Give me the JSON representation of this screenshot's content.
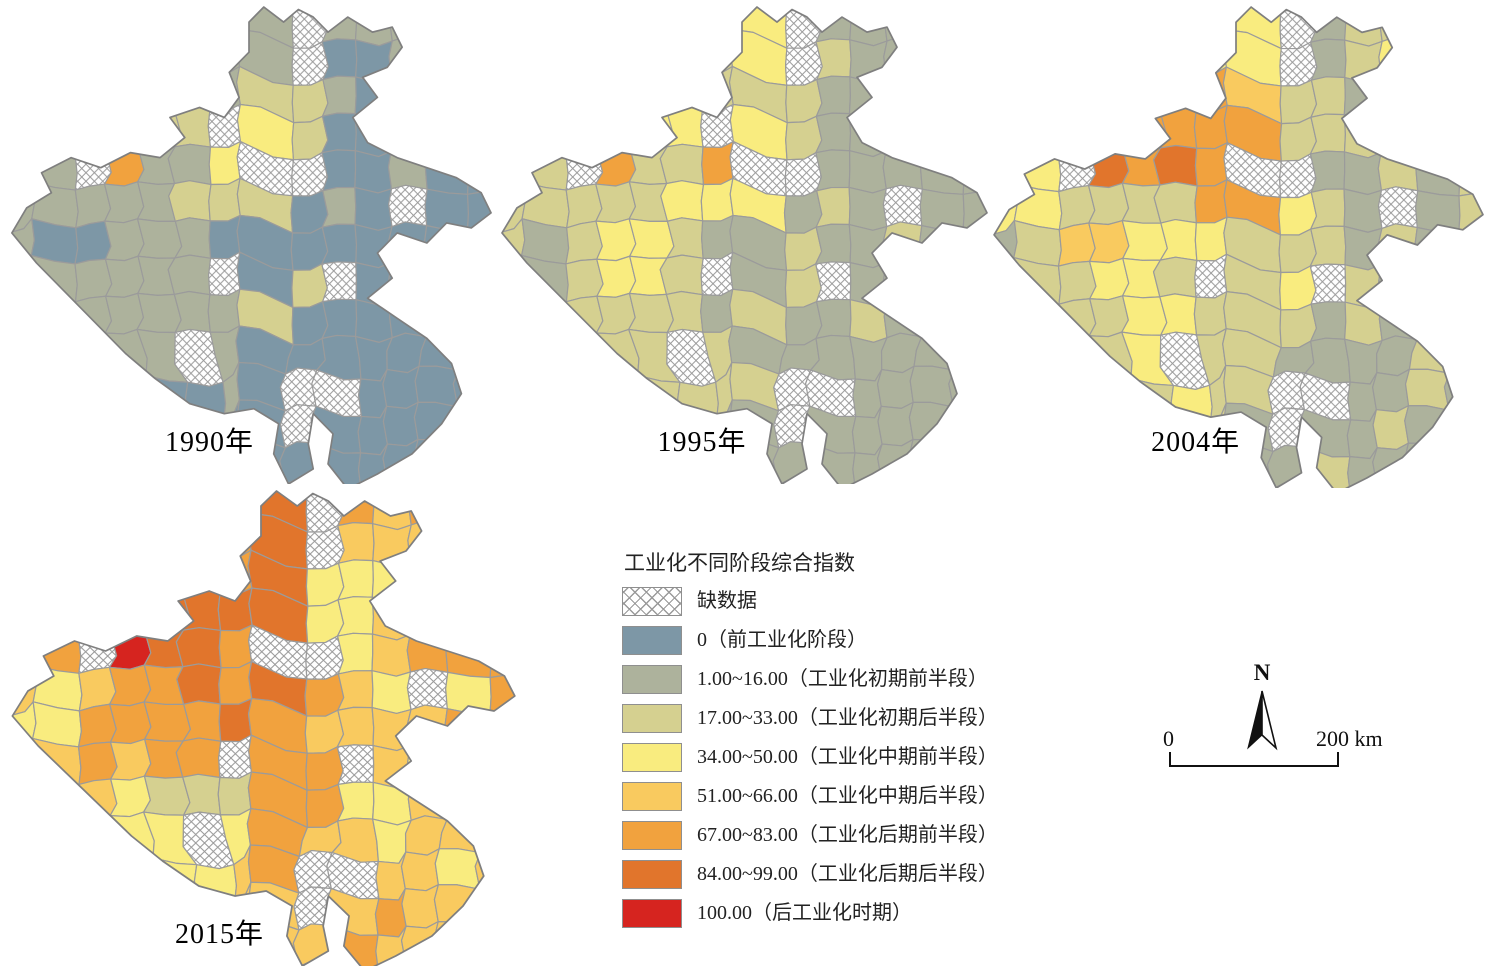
{
  "maps": [
    {
      "year_label": "1990年",
      "grid": [
        "11111111x11111",
        "11111111x00111",
        "11111112210010",
        "111122x3200100",
        "11x5113xx00100",
        "11111222010x00",
        "10011100000000",
        "111111x02x0000",
        "11111112000000",
        "11111x10000000",
        "11110010xx0000",
        "11111100x00000",
        "11111110000000"
      ]
    },
    {
      "year_label": "1995年",
      "grid": [
        "11111133x11111",
        "11111123x21111",
        "11111122211111",
        "222233x3211111",
        "22x5225xx11111",
        "22222333121x11",
        "21233211211211",
        "112332x12x1111",
        "12222212112111",
        "11222x21111111",
        "11122222xx1111",
        "11111111x11111",
        "11111111111111"
      ]
    },
    {
      "year_label": "2004年",
      "grid": [
        "11111133x12211",
        "11111133x12331",
        "11111154221111",
        "22225555222111",
        "33x6565xx11212",
        "33222255321x12",
        "12443332221211",
        "122332x23x2111",
        "12223322212111",
        "11223x22111121",
        "11222322xx1121",
        "11111121x11211",
        "11111111121111"
      ]
    },
    {
      "year_label": "2015年",
      "grid": [
        "44444466x54544",
        "44444456x44454",
        "44444456333444",
        "55556666334544",
        "55x7665xx34555",
        "43455656543x35",
        "33555565444454",
        "345455x55x4344",
        "44432225533444",
        "44433x35443444",
        "44443345xx4434",
        "44444444x45444",
        "44444444454444"
      ]
    }
  ],
  "legend": {
    "title": "工业化不同阶段综合指数",
    "items": [
      {
        "key": "x",
        "label": "缺数据",
        "pattern": "crosshatch"
      },
      {
        "key": "0",
        "label": "0（前工业化阶段）",
        "color": "#7D97A6"
      },
      {
        "key": "1",
        "label": "1.00~16.00（工业化初期前半段）",
        "color": "#ADB29C"
      },
      {
        "key": "2",
        "label": "17.00~33.00（工业化初期后半段）",
        "color": "#D5D090"
      },
      {
        "key": "3",
        "label": "34.00~50.00（工业化中期前半段）",
        "color": "#F9EC7F"
      },
      {
        "key": "4",
        "label": "51.00~66.00（工业化中期后半段）",
        "color": "#F9CA5F"
      },
      {
        "key": "5",
        "label": "67.00~83.00（工业化后期前半段）",
        "color": "#F1A23E"
      },
      {
        "key": "6",
        "label": "84.00~99.00（工业化后期后半段）",
        "color": "#E1752C"
      },
      {
        "key": "7",
        "label": "100.00（后工业化时期）",
        "color": "#D6241F"
      }
    ]
  },
  "compass": {
    "label": "N"
  },
  "scale_bar": {
    "start_label": "0",
    "end_label": "200 km"
  },
  "map_style": {
    "cell_border_color": "#9b9b9b",
    "outline_color": "#7f7f7f",
    "hatch_line_color": "#9a9a9a"
  }
}
